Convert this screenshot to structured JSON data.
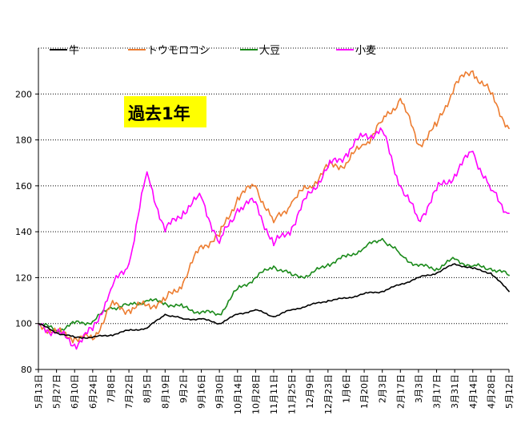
{
  "chart_data": {
    "type": "line",
    "title": "",
    "xlabel": "",
    "ylabel": "",
    "ylim": [
      80,
      220
    ],
    "yticks": [
      80,
      100,
      120,
      140,
      160,
      180,
      200
    ],
    "grid": "horizontal dotted at 100, 120, 140, 160, 180, 200, 220",
    "legend_position": "top",
    "annotation": {
      "text": "過去1年",
      "background": "#ffff00"
    },
    "x": [
      "5月13日",
      "5月27日",
      "6月10日",
      "6月24日",
      "7月8日",
      "7月22日",
      "8月5日",
      "8月19日",
      "9月2日",
      "9月16日",
      "9月30日",
      "10月14日",
      "10月28日",
      "11月11日",
      "11月25日",
      "12月9日",
      "12月23日",
      "1月6日",
      "1月20日",
      "2月3日",
      "2月17日",
      "3月3日",
      "3月17日",
      "3月31日",
      "4月14日",
      "4月28日",
      "5月12日"
    ],
    "series": [
      {
        "name": "牛",
        "color": "#000000",
        "values": [
          100,
          96,
          94,
          94,
          95,
          97,
          98,
          104,
          102,
          102,
          100,
          104,
          106,
          103,
          106,
          108,
          110,
          111,
          113,
          114,
          117,
          120,
          122,
          126,
          124,
          122,
          114
        ]
      },
      {
        "name": "トウモロコシ",
        "color": "#ed7d31",
        "values": [
          100,
          96,
          94,
          93,
          108,
          106,
          108,
          110,
          118,
          134,
          138,
          155,
          160,
          144,
          153,
          160,
          168,
          170,
          178,
          188,
          198,
          178,
          186,
          204,
          210,
          200,
          185
        ]
      },
      {
        "name": "大豆",
        "color": "#1a8a1a",
        "values": [
          100,
          97,
          100,
          101,
          107,
          108,
          110,
          109,
          107,
          105,
          104,
          115,
          120,
          125,
          121,
          121,
          126,
          129,
          133,
          137,
          130,
          125,
          124,
          128,
          125,
          124,
          121
        ]
      },
      {
        "name": "小麦",
        "color": "#ff00ff",
        "values": [
          100,
          96,
          91,
          97,
          115,
          126,
          166,
          140,
          149,
          155,
          135,
          150,
          153,
          134,
          142,
          157,
          168,
          174,
          182,
          184,
          160,
          145,
          158,
          165,
          175,
          158,
          148
        ]
      }
    ]
  }
}
